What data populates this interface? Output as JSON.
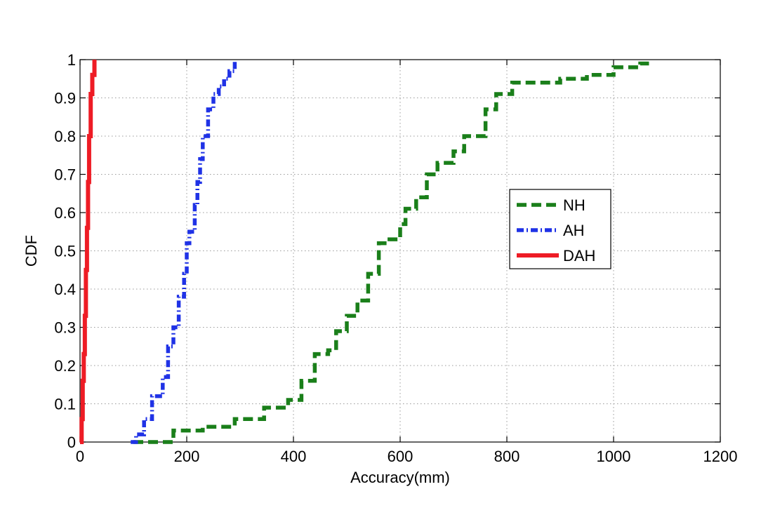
{
  "chart_data": {
    "type": "line",
    "title": "",
    "xlabel": "Accuracy(mm)",
    "ylabel": "CDF",
    "xlim": [
      0,
      1200
    ],
    "ylim": [
      0,
      1
    ],
    "xticks": [
      "0",
      "200",
      "400",
      "600",
      "800",
      "1000",
      "1200"
    ],
    "yticks": [
      "0",
      "0.1",
      "0.2",
      "0.3",
      "0.4",
      "0.5",
      "0.6",
      "0.7",
      "0.8",
      "0.9",
      "1"
    ],
    "grid": true,
    "legend_position": "right-center",
    "series": [
      {
        "name": "NH",
        "color": "#1a7f1a",
        "style": "dashed",
        "x": [
          100,
          170,
          175,
          230,
          290,
          345,
          390,
          415,
          440,
          465,
          480,
          500,
          520,
          540,
          560,
          580,
          600,
          610,
          630,
          650,
          670,
          700,
          720,
          760,
          780,
          810,
          830,
          850,
          870,
          900,
          950,
          1000,
          1050,
          1070
        ],
        "y": [
          0.0,
          0.01,
          0.03,
          0.04,
          0.06,
          0.09,
          0.11,
          0.16,
          0.23,
          0.24,
          0.29,
          0.33,
          0.37,
          0.44,
          0.52,
          0.53,
          0.57,
          0.61,
          0.64,
          0.7,
          0.73,
          0.76,
          0.8,
          0.87,
          0.91,
          0.94,
          0.94,
          0.94,
          0.94,
          0.95,
          0.96,
          0.98,
          0.99,
          0.99
        ]
      },
      {
        "name": "AH",
        "color": "#1f32e6",
        "style": "dashdot",
        "x": [
          95,
          105,
          120,
          135,
          155,
          165,
          175,
          185,
          195,
          200,
          205,
          215,
          220,
          225,
          230,
          240,
          250,
          260,
          270,
          280,
          290
        ],
        "y": [
          0.0,
          0.02,
          0.06,
          0.12,
          0.17,
          0.25,
          0.3,
          0.38,
          0.44,
          0.52,
          0.55,
          0.62,
          0.68,
          0.74,
          0.8,
          0.87,
          0.91,
          0.93,
          0.95,
          0.97,
          1.0
        ]
      },
      {
        "name": "DAH",
        "color": "#ee1c25",
        "style": "solid",
        "x": [
          0,
          3,
          5,
          7,
          9,
          11,
          13,
          15,
          17,
          20,
          23,
          27
        ],
        "y": [
          0.0,
          0.06,
          0.16,
          0.23,
          0.33,
          0.45,
          0.56,
          0.68,
          0.8,
          0.91,
          0.96,
          1.0
        ]
      }
    ]
  }
}
